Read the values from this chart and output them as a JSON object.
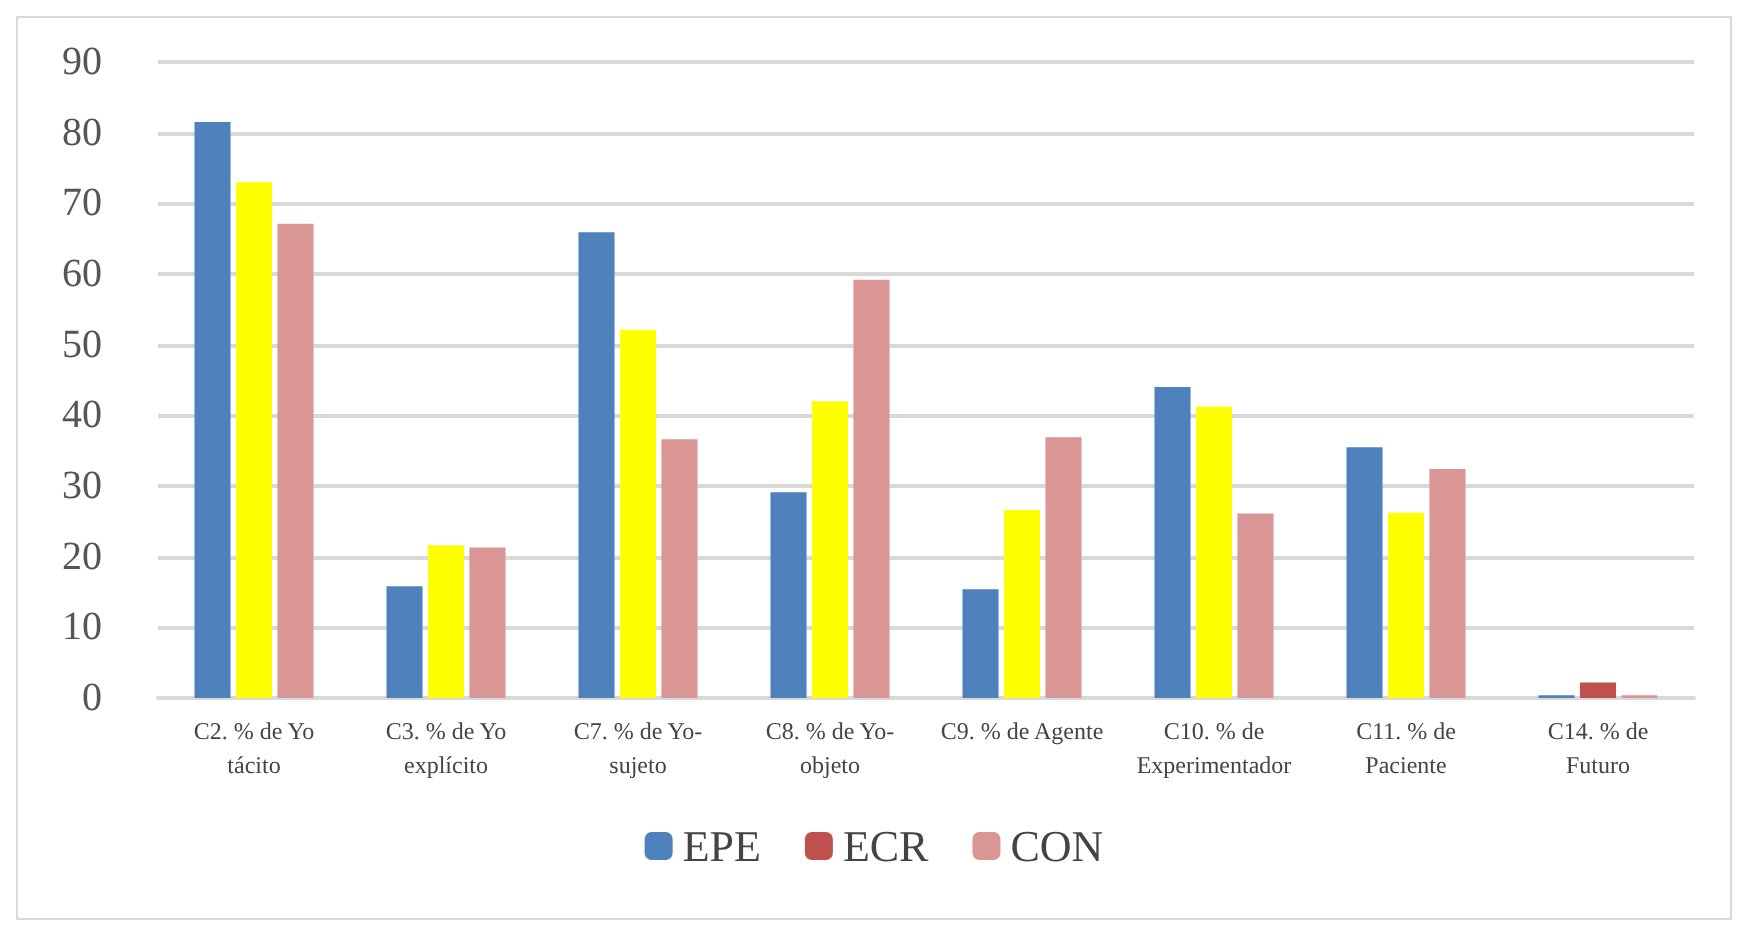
{
  "chart_data": {
    "type": "bar",
    "categories": [
      "C2. % de Yo\ntácito",
      "C3. % de Yo\nexplícito",
      "C7. % de Yo-\nsujeto",
      "C8. % de Yo-\nobjeto",
      "C9. % de Agente",
      "C10. % de\nExperimentador",
      "C11. % de\nPaciente",
      "C14. % de\nFuturo"
    ],
    "series": [
      {
        "name": "EPE",
        "color": "#4f81bd",
        "values": [
          81.5,
          15.8,
          65.9,
          29.1,
          15.4,
          44.0,
          35.5,
          0.4
        ]
      },
      {
        "name": "ECR",
        "color": "#c0504d",
        "colors": [
          "#ffff00",
          "#ffff00",
          "#ffff00",
          "#ffff00",
          "#ffff00",
          "#ffff00",
          "#ffff00",
          "#c0504d"
        ],
        "values": [
          73.0,
          21.6,
          52.1,
          42.0,
          26.6,
          41.2,
          26.2,
          2.2
        ]
      },
      {
        "name": "CON",
        "color": "#d99694",
        "values": [
          67.1,
          21.3,
          36.6,
          59.2,
          36.9,
          26.1,
          32.4,
          0.4
        ]
      }
    ],
    "ylim": [
      0,
      90
    ],
    "yticks": [
      0,
      10,
      20,
      30,
      40,
      50,
      60,
      70,
      80,
      90
    ],
    "grid": "y",
    "legend": "bottom"
  }
}
